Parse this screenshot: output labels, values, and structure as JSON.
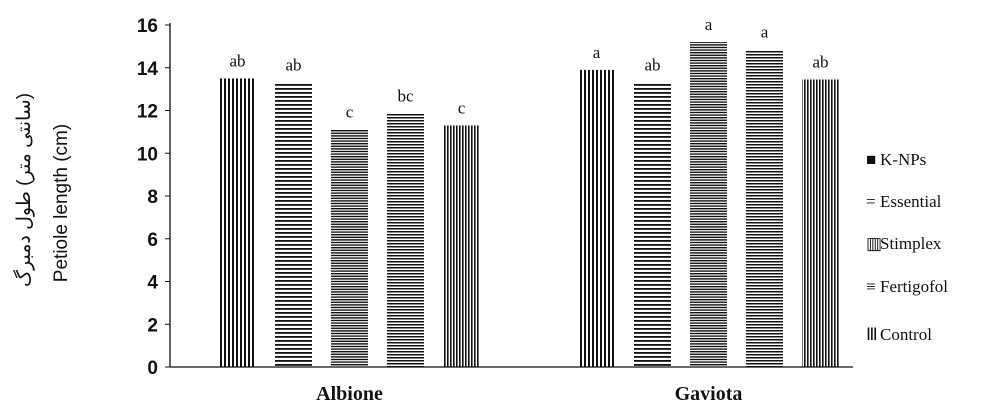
{
  "chart_data": {
    "type": "bar",
    "categories": [
      "Albione",
      "Gaviota"
    ],
    "ylabel": "Petiole length (cm)",
    "ylabel_secondary": "(سانتی متر) طول دمبرگ",
    "ylim": [
      0,
      16
    ],
    "yticks": [
      0,
      2,
      4,
      6,
      8,
      10,
      12,
      14,
      16
    ],
    "grid": false,
    "legend_position": "right",
    "bar_order": [
      "Control",
      "Fertigofol",
      "Stimplex",
      "Essential",
      "K-NPs"
    ],
    "series": [
      {
        "name": "Control",
        "pattern": "vertical-sparse",
        "values": [
          13.5,
          13.9
        ],
        "labels": [
          "ab",
          "a"
        ]
      },
      {
        "name": "Fertigofol",
        "pattern": "horizontal-sparse",
        "values": [
          13.3,
          13.3
        ],
        "labels": [
          "ab",
          "ab"
        ]
      },
      {
        "name": "Stimplex",
        "pattern": "horizontal-dense",
        "values": [
          11.1,
          15.2
        ],
        "labels": [
          "c",
          "a"
        ]
      },
      {
        "name": "Essential",
        "pattern": "horizontal-medium",
        "values": [
          11.85,
          14.85
        ],
        "labels": [
          "bc",
          "a"
        ]
      },
      {
        "name": "K-NPs",
        "pattern": "vertical-dense",
        "values": [
          11.3,
          13.45
        ],
        "labels": [
          "c",
          "ab"
        ]
      }
    ],
    "legend": [
      {
        "name": "K-NPs",
        "symbol": "■"
      },
      {
        "name": "Essential",
        "symbol": "="
      },
      {
        "name": "Stimplex",
        "symbol": "▥"
      },
      {
        "name": "Fertigofol",
        "symbol": "≡"
      },
      {
        "name": "Control",
        "symbol": "Ⅲ"
      }
    ]
  }
}
